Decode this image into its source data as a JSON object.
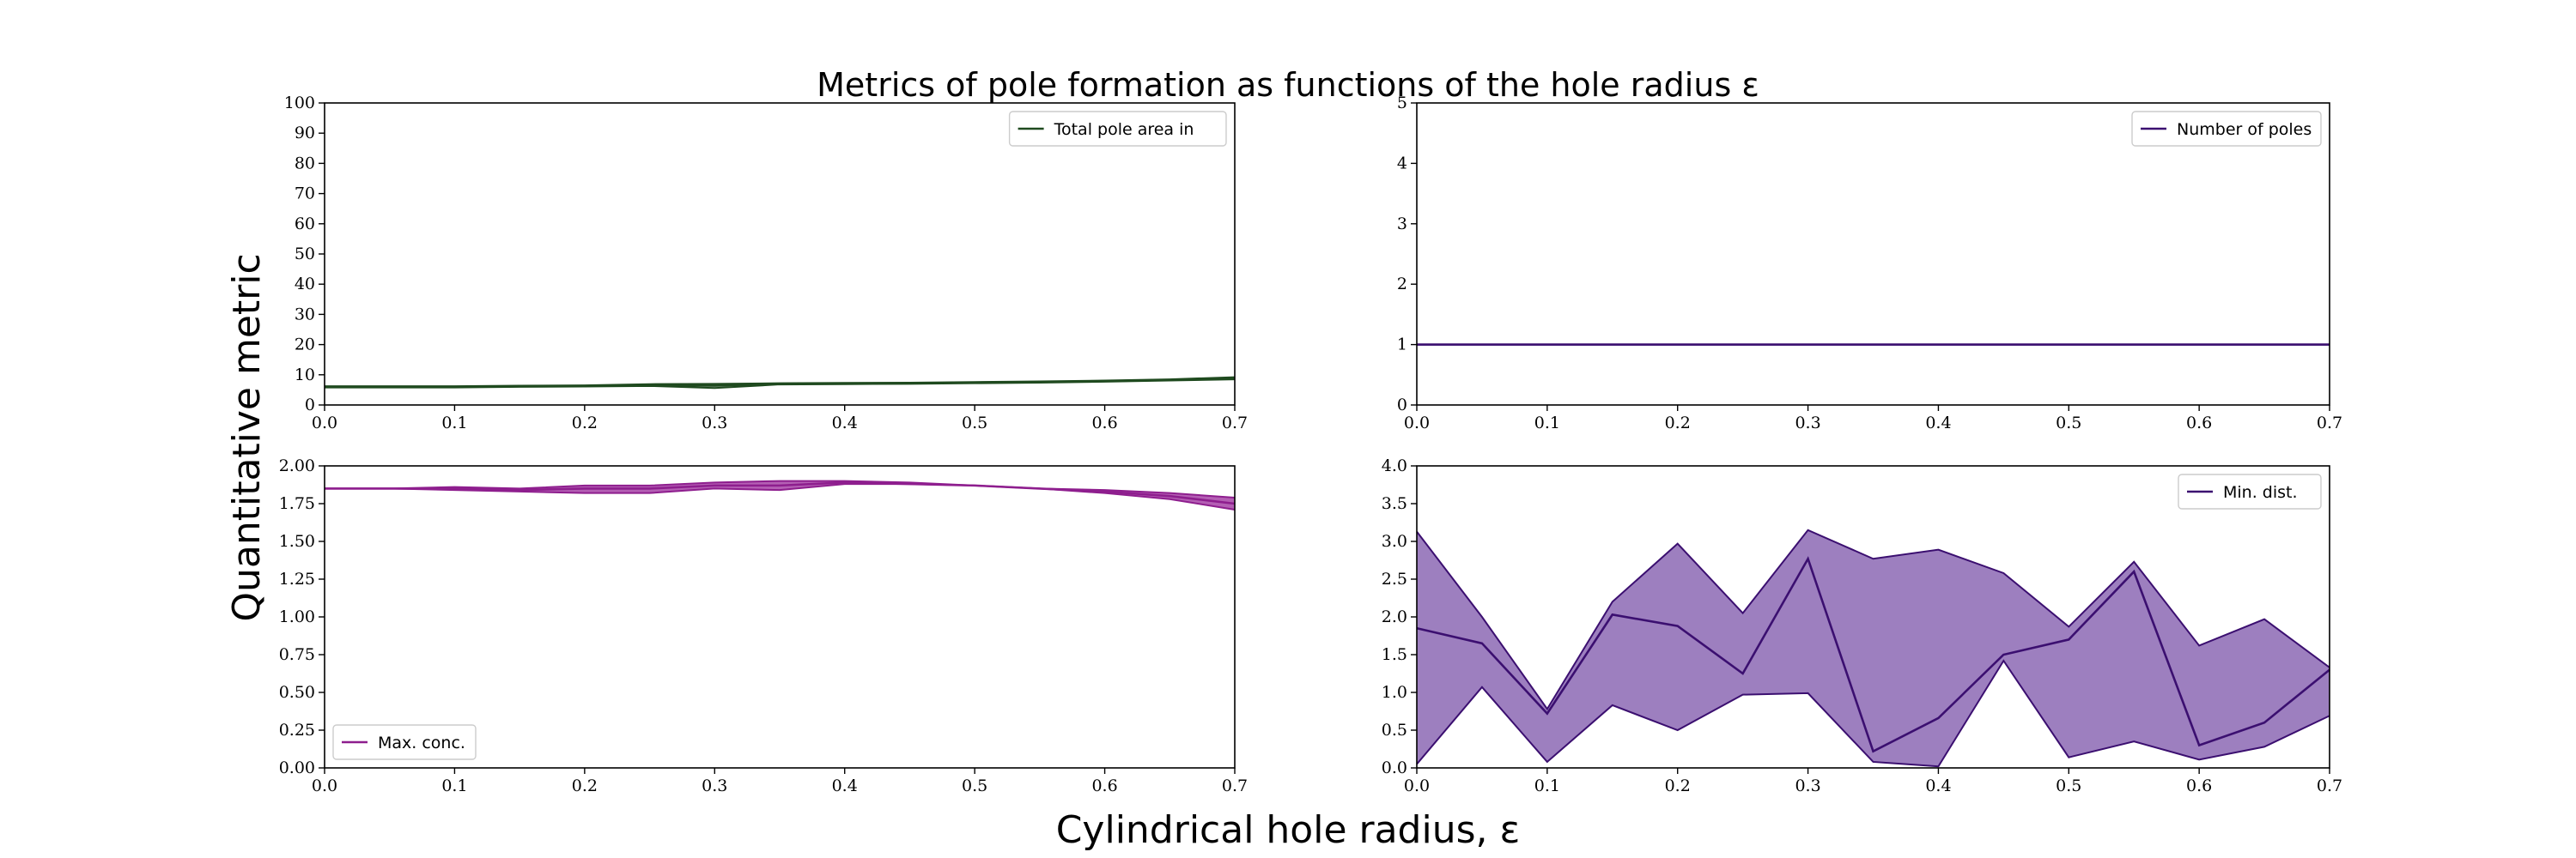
{
  "figure": {
    "title": "Metrics of pole formation as functions of the hole radius ε",
    "xlabel": "Cylindrical hole radius, ε",
    "ylabel": "Quantitative metric"
  },
  "chart_data": [
    {
      "id": "area",
      "type": "line",
      "xlim": [
        0,
        0.7
      ],
      "ylim": [
        0,
        100
      ],
      "xticks": [
        "0.0",
        "0.1",
        "0.2",
        "0.3",
        "0.4",
        "0.5",
        "0.6",
        "0.7"
      ],
      "yticks": [
        "0",
        "10",
        "20",
        "30",
        "40",
        "50",
        "60",
        "70",
        "80",
        "90",
        "100"
      ],
      "legend": {
        "label": "Total pole area in",
        "position": "top-right"
      },
      "color": "#1f4a1f",
      "x": [
        0,
        0.05,
        0.1,
        0.15,
        0.2,
        0.25,
        0.3,
        0.35,
        0.4,
        0.45,
        0.5,
        0.55,
        0.6,
        0.65,
        0.7
      ],
      "mean": [
        6.0,
        6.0,
        6.0,
        6.2,
        6.3,
        6.6,
        6.4,
        7.0,
        7.1,
        7.2,
        7.4,
        7.6,
        7.9,
        8.3,
        8.8
      ],
      "lower": [
        5.8,
        5.8,
        5.8,
        6.0,
        6.1,
        6.3,
        5.6,
        6.8,
        6.9,
        7.0,
        7.2,
        7.4,
        7.7,
        8.1,
        8.5
      ],
      "upper": [
        6.2,
        6.2,
        6.2,
        6.4,
        6.5,
        6.9,
        7.0,
        7.2,
        7.3,
        7.4,
        7.6,
        7.8,
        8.1,
        8.5,
        9.2
      ]
    },
    {
      "id": "poles",
      "type": "line",
      "xlim": [
        0,
        0.7
      ],
      "ylim": [
        0,
        5
      ],
      "xticks": [
        "0.0",
        "0.1",
        "0.2",
        "0.3",
        "0.4",
        "0.5",
        "0.6",
        "0.7"
      ],
      "yticks": [
        "0",
        "1",
        "2",
        "3",
        "4",
        "5"
      ],
      "legend": {
        "label": "Number of poles",
        "position": "top-right"
      },
      "color": "#3b0f70",
      "x": [
        0,
        0.05,
        0.1,
        0.15,
        0.2,
        0.25,
        0.3,
        0.35,
        0.4,
        0.45,
        0.5,
        0.55,
        0.6,
        0.65,
        0.7
      ],
      "mean": [
        1,
        1,
        1,
        1,
        1,
        1,
        1,
        1,
        1,
        1,
        1,
        1,
        1,
        1,
        1
      ],
      "lower": [
        1,
        1,
        1,
        1,
        1,
        1,
        1,
        1,
        1,
        1,
        1,
        1,
        1,
        1,
        1
      ],
      "upper": [
        1,
        1,
        1,
        1,
        1,
        1,
        1,
        1,
        1,
        1,
        1,
        1,
        1,
        1,
        1
      ]
    },
    {
      "id": "conc",
      "type": "area",
      "xlim": [
        0,
        0.7
      ],
      "ylim": [
        0,
        2.0
      ],
      "xticks": [
        "0.0",
        "0.1",
        "0.2",
        "0.3",
        "0.4",
        "0.5",
        "0.6",
        "0.7"
      ],
      "yticks": [
        "0.00",
        "0.25",
        "0.50",
        "0.75",
        "1.00",
        "1.25",
        "1.50",
        "1.75",
        "2.00"
      ],
      "legend": {
        "label": "Max. conc.",
        "position": "bottom-left"
      },
      "color": "#8e1e8e",
      "fill": "#b45fb4",
      "x": [
        0,
        0.05,
        0.1,
        0.15,
        0.2,
        0.25,
        0.3,
        0.35,
        0.4,
        0.45,
        0.5,
        0.55,
        0.6,
        0.65,
        0.7
      ],
      "mean": [
        1.85,
        1.85,
        1.85,
        1.84,
        1.85,
        1.85,
        1.87,
        1.87,
        1.89,
        1.88,
        1.87,
        1.85,
        1.83,
        1.8,
        1.75
      ],
      "lower": [
        1.85,
        1.85,
        1.84,
        1.83,
        1.82,
        1.82,
        1.85,
        1.84,
        1.88,
        1.88,
        1.87,
        1.85,
        1.82,
        1.78,
        1.71
      ],
      "upper": [
        1.85,
        1.85,
        1.86,
        1.85,
        1.87,
        1.87,
        1.89,
        1.9,
        1.9,
        1.89,
        1.87,
        1.85,
        1.84,
        1.82,
        1.79
      ]
    },
    {
      "id": "dist",
      "type": "area",
      "xlim": [
        0,
        0.7
      ],
      "ylim": [
        0,
        4.0
      ],
      "xticks": [
        "0.0",
        "0.1",
        "0.2",
        "0.3",
        "0.4",
        "0.5",
        "0.6",
        "0.7"
      ],
      "yticks": [
        "0.0",
        "0.5",
        "1.0",
        "1.5",
        "2.0",
        "2.5",
        "3.0",
        "3.5",
        "4.0"
      ],
      "legend": {
        "label": "Min. dist.",
        "position": "top-right"
      },
      "color": "#3b0f70",
      "fill": "#9d7fbf",
      "x": [
        0,
        0.05,
        0.1,
        0.15,
        0.2,
        0.25,
        0.3,
        0.35,
        0.4,
        0.45,
        0.5,
        0.55,
        0.6,
        0.65,
        0.7
      ],
      "mean": [
        1.85,
        1.65,
        0.72,
        2.03,
        1.88,
        1.25,
        2.77,
        0.22,
        0.66,
        1.5,
        1.7,
        2.6,
        0.3,
        0.6,
        1.3
      ],
      "lower": [
        0.05,
        1.07,
        0.08,
        0.83,
        0.5,
        0.97,
        0.99,
        0.08,
        0.02,
        1.42,
        0.14,
        0.35,
        0.11,
        0.28,
        0.69
      ],
      "upper": [
        3.13,
        2.0,
        0.78,
        2.2,
        2.97,
        2.05,
        3.15,
        2.77,
        2.89,
        2.58,
        1.87,
        2.73,
        1.62,
        1.97,
        1.33
      ]
    }
  ]
}
